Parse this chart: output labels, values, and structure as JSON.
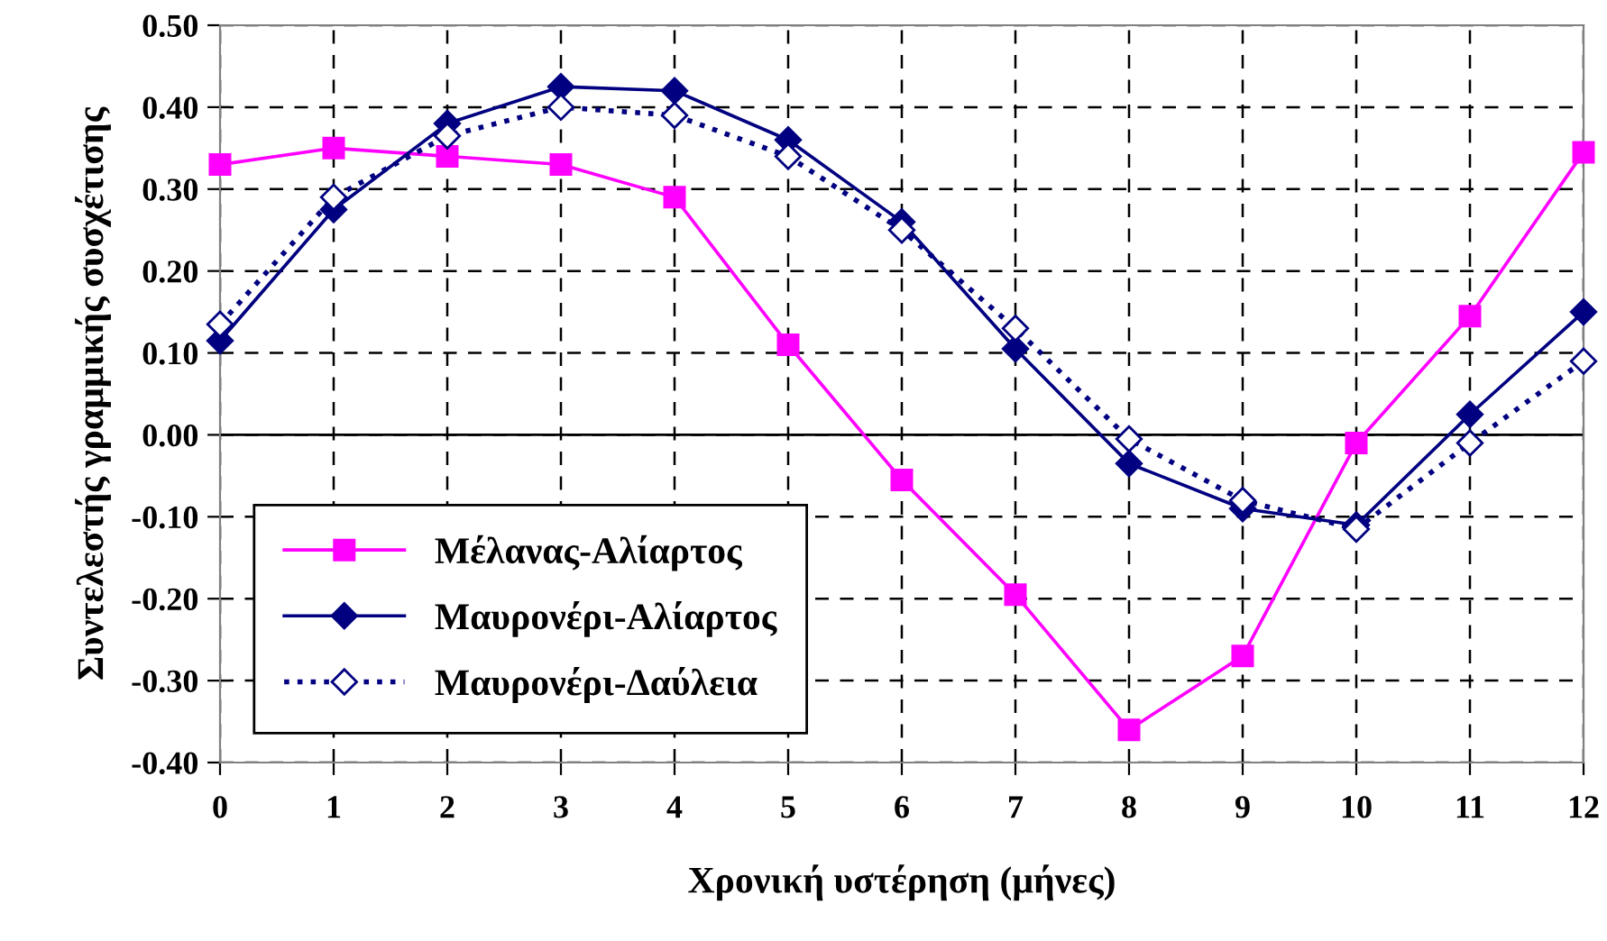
{
  "chart_data": {
    "type": "line",
    "xlabel": "Χρονική υστέρηση (μήνες)",
    "ylabel": "Συντελεστής γραμμικής συσχέτισης",
    "x": [
      0,
      1,
      2,
      3,
      4,
      5,
      6,
      7,
      8,
      9,
      10,
      11,
      12
    ],
    "xlim": [
      0,
      12
    ],
    "xticks": [
      0,
      1,
      2,
      3,
      4,
      5,
      6,
      7,
      8,
      9,
      10,
      11,
      12
    ],
    "ylim": [
      -0.4,
      0.5
    ],
    "yticks": [
      {
        "value": -0.4,
        "label": "-0.40"
      },
      {
        "value": -0.3,
        "label": "-0.30"
      },
      {
        "value": -0.2,
        "label": "-0.20"
      },
      {
        "value": -0.1,
        "label": "-0.10"
      },
      {
        "value": 0,
        "label": "0.00"
      },
      {
        "value": 0.1,
        "label": "0.10"
      },
      {
        "value": 0.2,
        "label": "0.20"
      },
      {
        "value": 0.3,
        "label": "0.30"
      },
      {
        "value": 0.4,
        "label": "0.40"
      },
      {
        "value": 0.5,
        "label": "0.50"
      }
    ],
    "grid": true,
    "legend": "bottom left",
    "ref_lines": [
      {
        "axis": "y",
        "value": 0,
        "color": "#000000",
        "line_style": "solid"
      }
    ],
    "series": [
      {
        "name": "Μέλανας-Αλίαρτος",
        "color": "#ff00ff",
        "marker": "square",
        "line_style": "solid",
        "values": [
          0.33,
          0.35,
          0.34,
          0.33,
          0.29,
          0.11,
          -0.055,
          -0.195,
          -0.36,
          -0.27,
          -0.01,
          0.145,
          0.345
        ]
      },
      {
        "name": "Μαυρονέρι-Αλίαρτος",
        "color": "#000080",
        "marker": "diamond",
        "line_style": "solid",
        "values": [
          0.115,
          0.275,
          0.38,
          0.425,
          0.42,
          0.36,
          0.26,
          0.105,
          -0.035,
          -0.09,
          -0.11,
          0.025,
          0.15
        ]
      },
      {
        "name": "Μαυρονέρι-Δαύλεια",
        "color": "#000080",
        "marker": "diamond",
        "line_style": "dotted",
        "values": [
          0.135,
          0.29,
          0.365,
          0.4,
          0.39,
          0.34,
          0.25,
          0.13,
          -0.005,
          -0.08,
          -0.115,
          -0.01,
          0.09
        ]
      }
    ]
  }
}
